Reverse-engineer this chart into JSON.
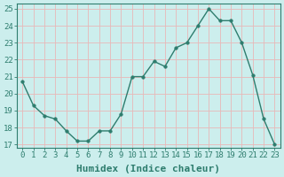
{
  "x": [
    0,
    1,
    2,
    3,
    4,
    5,
    6,
    7,
    8,
    9,
    10,
    11,
    12,
    13,
    14,
    15,
    16,
    17,
    18,
    19,
    20,
    21,
    22,
    23
  ],
  "y": [
    20.7,
    19.3,
    18.7,
    18.5,
    17.8,
    17.2,
    17.2,
    17.8,
    17.8,
    18.8,
    21.0,
    21.0,
    21.9,
    21.6,
    22.7,
    23.0,
    24.0,
    25.0,
    24.3,
    24.3,
    23.0,
    21.1,
    18.5,
    17.0
  ],
  "line_color": "#2e7d6e",
  "marker": "o",
  "markersize": 2.5,
  "linewidth": 1.0,
  "xlabel": "Humidex (Indice chaleur)",
  "ylim": [
    16.8,
    25.3
  ],
  "xlim": [
    -0.5,
    23.5
  ],
  "yticks": [
    17,
    18,
    19,
    20,
    21,
    22,
    23,
    24,
    25
  ],
  "xticks": [
    0,
    1,
    2,
    3,
    4,
    5,
    6,
    7,
    8,
    9,
    10,
    11,
    12,
    13,
    14,
    15,
    16,
    17,
    18,
    19,
    20,
    21,
    22,
    23
  ],
  "bg_color": "#cceeed",
  "grid_color": "#e8b8b8",
  "tick_fontsize": 6.5,
  "xlabel_fontsize": 8,
  "spine_color": "#2e7d6e"
}
